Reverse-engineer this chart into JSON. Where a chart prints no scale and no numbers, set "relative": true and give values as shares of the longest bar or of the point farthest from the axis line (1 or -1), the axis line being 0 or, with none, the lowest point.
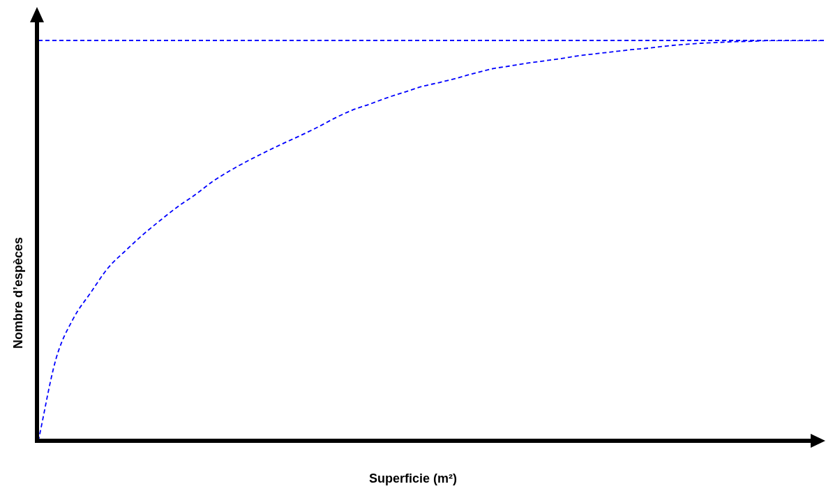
{
  "chart_data": {
    "type": "line",
    "xlabel": "Superficie (m²)",
    "ylabel": "Nombre d’espèces",
    "relative": true,
    "marker": "none",
    "line_style": "dashed",
    "categories": [
      null,
      null,
      null,
      null,
      null,
      null,
      null,
      null,
      null,
      null,
      null,
      null,
      null,
      null,
      null,
      null,
      null,
      null,
      null,
      null,
      null,
      null,
      null,
      null,
      null,
      null,
      null,
      null,
      null,
      null,
      null,
      null,
      null,
      null,
      null,
      null,
      null,
      null,
      null,
      null,
      null,
      null,
      null,
      null,
      null,
      null
    ],
    "series": [
      {
        "color": "#0000ff",
        "values": [
          0,
          0.203,
          0.305,
          0.37,
          0.432,
          0.475,
          0.515,
          0.551,
          0.585,
          0.615,
          0.648,
          0.675,
          0.699,
          0.721,
          0.742,
          0.762,
          0.783,
          0.806,
          0.826,
          0.841,
          0.857,
          0.871,
          0.885,
          0.895,
          0.906,
          0.918,
          0.929,
          0.936,
          0.943,
          0.949,
          0.955,
          0.962,
          0.967,
          0.972,
          0.977,
          0.981,
          0.986,
          0.99,
          0.993,
          0.995,
          0.997,
          0.998,
          1,
          1,
          1,
          1
        ]
      }
    ],
    "ref_lines": [
      {
        "axis": "y",
        "value": 1,
        "color": "#0000ff",
        "line_style": "dashed"
      }
    ]
  }
}
